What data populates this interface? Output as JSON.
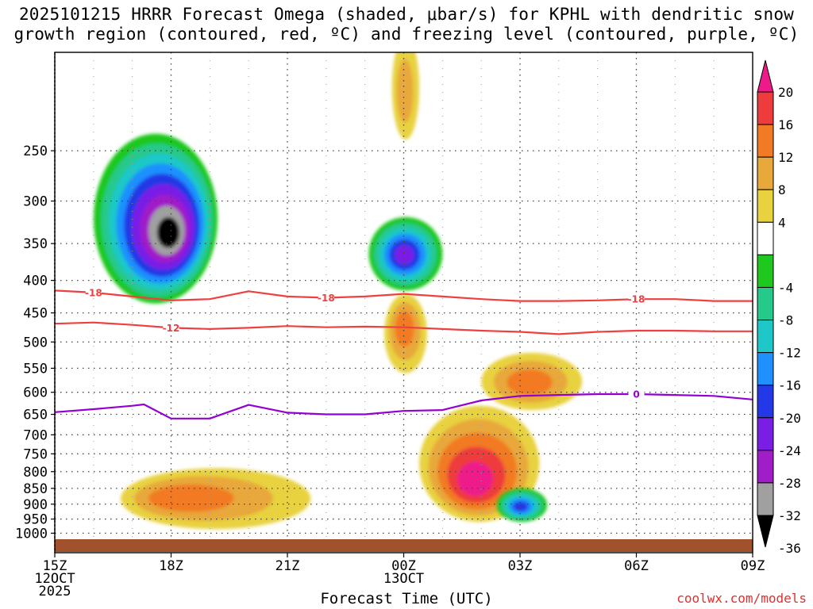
{
  "title": {
    "line1": "2025101215 HRRR Forecast Omega (shaded, μbar/s) for KPHL with dendritic snow",
    "line2": "growth region (contoured, red, ºC) and freezing level (contoured, purple, ºC)"
  },
  "xlabel": "Forecast Time (UTC)",
  "credit": "coolwx.com/models",
  "colors": {
    "dendritic": "#ee4040",
    "freezing": "#9400d3",
    "ground": "#a0522d"
  },
  "chart_data": {
    "type": "contour",
    "title": "2025101215 HRRR Forecast Omega (shaded, μbar/s) for KPHL with dendritic snow growth region (contoured, red, ºC) and freezing level (contoured, purple, ºC)",
    "xlabel": "Forecast Time (UTC)",
    "ylabel": "",
    "x_range_hours": [
      0,
      18
    ],
    "x_ticks": [
      {
        "hour": 0,
        "label": "15Z",
        "sub": [
          "12OCT",
          "2025"
        ]
      },
      {
        "hour": 3,
        "label": "18Z",
        "sub": []
      },
      {
        "hour": 6,
        "label": "21Z",
        "sub": []
      },
      {
        "hour": 9,
        "label": "00Z",
        "sub": [
          "13OCT"
        ]
      },
      {
        "hour": 12,
        "label": "03Z",
        "sub": []
      },
      {
        "hour": 15,
        "label": "06Z",
        "sub": []
      },
      {
        "hour": 18,
        "label": "09Z",
        "sub": []
      }
    ],
    "y_range_hPa": [
      1025,
      175
    ],
    "y_ticks": [
      "250",
      "300",
      "350",
      "400",
      "450",
      "500",
      "550",
      "600",
      "650",
      "700",
      "750",
      "800",
      "850",
      "900",
      "950",
      "1000"
    ],
    "colorbar": {
      "labels": [
        "20",
        "16",
        "12",
        "8",
        "4",
        "-4",
        "-8",
        "-12",
        "-16",
        "-20",
        "-24",
        "-28",
        "-32",
        "-36"
      ],
      "levels": [
        {
          "range": ">20",
          "color": "#ee1a8a"
        },
        {
          "range": "16 to 20",
          "color": "#ee3b3b"
        },
        {
          "range": "12 to 16",
          "color": "#f27a24"
        },
        {
          "range": "8 to 12",
          "color": "#e8a83a"
        },
        {
          "range": "4 to 8",
          "color": "#e8d23f"
        },
        {
          "range": "-4 to 4",
          "color": "#ffffff"
        },
        {
          "range": "-8 to -4",
          "color": "#1ec81e"
        },
        {
          "range": "-12 to -8",
          "color": "#25c98a"
        },
        {
          "range": "-16 to -12",
          "color": "#1ec8c8"
        },
        {
          "range": "-20 to -16",
          "color": "#1e90ff"
        },
        {
          "range": "-24 to -20",
          "color": "#2338e6"
        },
        {
          "range": "-28 to -24",
          "color": "#7a1ee6"
        },
        {
          "range": "-32 to -28",
          "color": "#a01ec8"
        },
        {
          "range": "-36 to -32",
          "color": "#a0a0a0"
        },
        {
          "range": "<-36",
          "color": "#000000"
        }
      ]
    },
    "omega_features": [
      {
        "name": "upper-ascent-18z",
        "hour": 3.0,
        "p": 340,
        "peak": -36,
        "extent_h": [
          1.0,
          4.2
        ],
        "extent_p": [
          235,
          435
        ]
      },
      {
        "name": "upper-ascent-00z",
        "hour": 9.0,
        "p": 365,
        "peak": -26,
        "extent_h": [
          8.1,
          10.0
        ],
        "extent_p": [
          318,
          415
        ]
      },
      {
        "name": "low-level-sinking-01z",
        "hour": 10.8,
        "p": 840,
        "peak": 20,
        "extent_h": [
          9.4,
          12.5
        ],
        "extent_p": [
          630,
          960
        ]
      },
      {
        "name": "mid-level-sinking-03z",
        "hour": 12.2,
        "p": 580,
        "peak": 12,
        "extent_h": [
          11.0,
          13.6
        ],
        "extent_p": [
          520,
          640
        ]
      },
      {
        "name": "low-level-sinking-19z",
        "hour": 3.0,
        "p": 880,
        "peak": 12,
        "extent_h": [
          1.7,
          6.6
        ],
        "extent_p": [
          790,
          985
        ]
      },
      {
        "name": "low-level-ascent-03z",
        "hour": 12.0,
        "p": 910,
        "peak": -20,
        "extent_h": [
          11.4,
          12.7
        ],
        "extent_p": [
          850,
          960
        ]
      },
      {
        "name": "mid-level-sinking-00z",
        "hour": 9.0,
        "p": 470,
        "peak": 12,
        "extent_h": [
          8.5,
          9.6
        ],
        "extent_p": [
          420,
          560
        ]
      },
      {
        "name": "upper-sinking-2330z",
        "hour": 9.0,
        "p": 205,
        "peak": 8,
        "extent_h": [
          8.7,
          9.4
        ],
        "extent_p": [
          165,
          240
        ]
      }
    ],
    "series": [
      {
        "name": "-18",
        "label": "-18",
        "kind": "dendritic_snow_growth",
        "color": "#ee4040",
        "x_hours": [
          0,
          1,
          2,
          3,
          4,
          5,
          6,
          7,
          8,
          9,
          10,
          11,
          12,
          13,
          14,
          15,
          16,
          17,
          18
        ],
        "pressure_hPa": [
          415,
          418,
          424,
          430,
          428,
          416,
          424,
          426,
          424,
          420,
          424,
          428,
          431,
          431,
          430,
          428,
          428,
          431,
          431
        ]
      },
      {
        "name": "-12",
        "label": "-12",
        "kind": "dendritic_snow_growth",
        "color": "#ee4040",
        "x_hours": [
          0,
          1,
          2,
          3,
          4,
          5,
          6,
          7,
          8,
          9,
          10,
          11,
          12,
          13,
          14,
          15,
          16,
          17,
          18
        ],
        "pressure_hPa": [
          468,
          466,
          470,
          475,
          477,
          475,
          472,
          474,
          473,
          474,
          477,
          480,
          482,
          486,
          482,
          480,
          480,
          481,
          481
        ]
      },
      {
        "name": "0",
        "label": "0",
        "kind": "freezing_level",
        "color": "#9400d3",
        "x_hours": [
          0,
          1,
          2,
          2.3,
          3,
          4,
          5,
          6,
          7,
          8,
          9,
          10,
          11,
          12,
          13,
          14,
          15,
          16,
          17,
          18
        ],
        "pressure_hPa": [
          645,
          638,
          630,
          627,
          660,
          660,
          628,
          646,
          650,
          650,
          642,
          640,
          618,
          608,
          606,
          604,
          604,
          606,
          608,
          616
        ]
      }
    ]
  }
}
